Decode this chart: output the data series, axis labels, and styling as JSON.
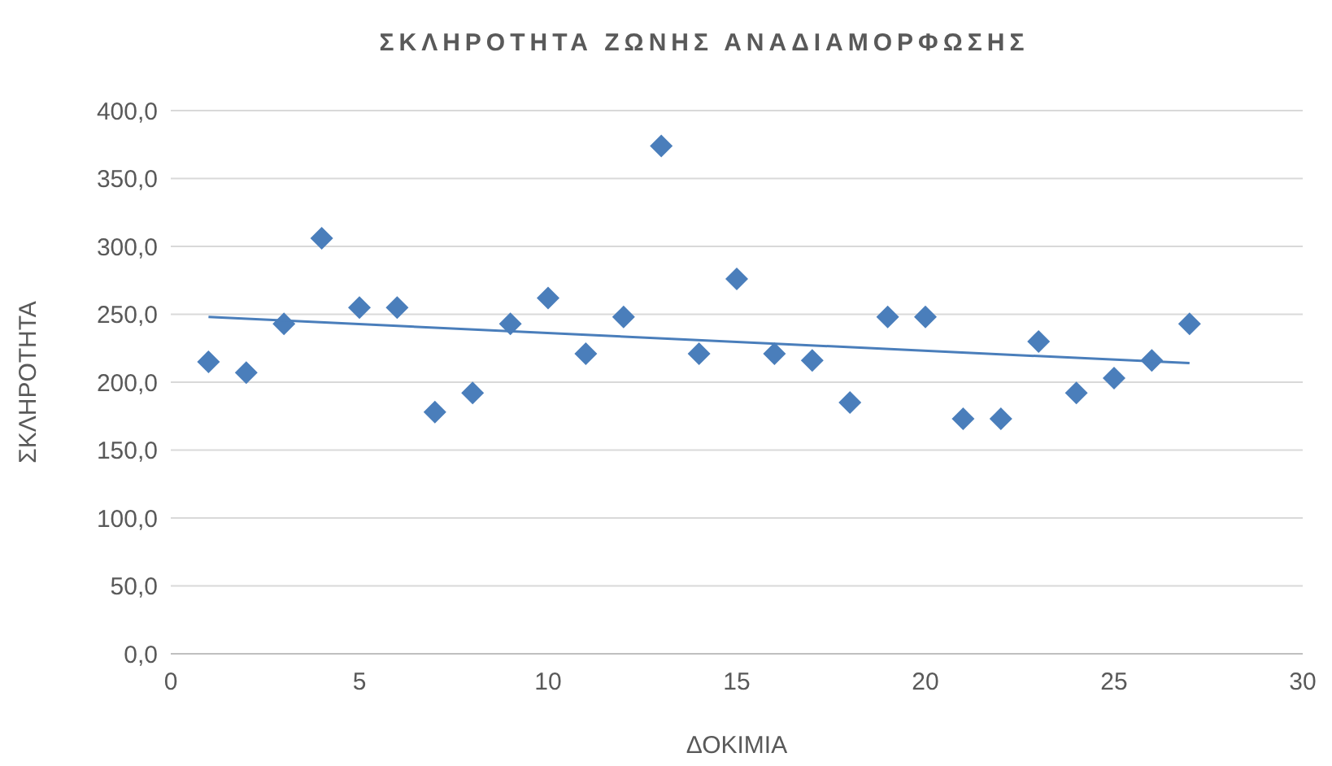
{
  "chart_data": {
    "type": "scatter",
    "title": "ΣΚΛΗΡΟΤΗΤΑ ΖΩΝΗΣ ΑΝΑΔΙΑΜΟΡΦΩΣΗΣ",
    "xlabel": "ΔΟΚΙΜΙΑ",
    "ylabel": "ΣΚΛΗΡΟΤΗΤΑ",
    "x": [
      1,
      2,
      3,
      4,
      5,
      6,
      7,
      8,
      9,
      10,
      11,
      12,
      13,
      14,
      15,
      16,
      17,
      18,
      19,
      20,
      21,
      22,
      23,
      24,
      25,
      26,
      27
    ],
    "series": [
      {
        "color": "#4a7ebb",
        "marker": "diamond",
        "values": [
          215,
          207,
          243,
          306,
          255,
          255,
          178,
          192,
          243,
          262,
          221,
          248,
          374,
          221,
          276,
          221,
          216,
          185,
          248,
          248,
          173,
          173,
          230,
          192,
          203,
          216,
          243
        ]
      },
      {
        "type": "line",
        "color": "#4a7ebb",
        "x": [
          1,
          27
        ],
        "values": [
          248,
          214
        ]
      }
    ],
    "xlim": [
      0,
      30
    ],
    "xticks": [
      0,
      5,
      10,
      15,
      20,
      25,
      30
    ],
    "ylim": [
      0,
      400
    ],
    "yticks": [
      {
        "value": 0,
        "label": "0,0"
      },
      {
        "value": 50,
        "label": "50,0"
      },
      {
        "value": 100,
        "label": "100,0"
      },
      {
        "value": 150,
        "label": "150,0"
      },
      {
        "value": 200,
        "label": "200,0"
      },
      {
        "value": 250,
        "label": "250,0"
      },
      {
        "value": 300,
        "label": "300,0"
      },
      {
        "value": 350,
        "label": "350,0"
      },
      {
        "value": 400,
        "label": "400,0"
      }
    ],
    "grid": "y"
  }
}
